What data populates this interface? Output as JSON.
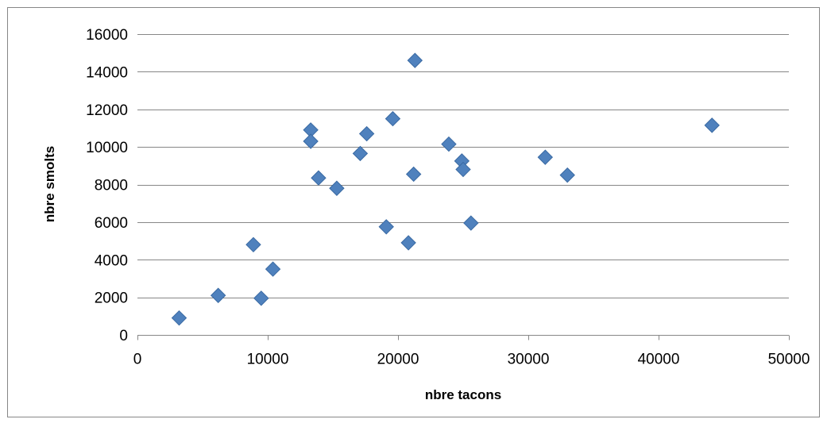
{
  "chart_data": {
    "type": "scatter",
    "title": "",
    "xlabel": "nbre tacons",
    "ylabel": "nbre smolts",
    "xlim": [
      0,
      50000
    ],
    "ylim": [
      0,
      16000
    ],
    "x_ticks": [
      0,
      10000,
      20000,
      30000,
      40000,
      50000
    ],
    "y_ticks": [
      0,
      2000,
      4000,
      6000,
      8000,
      10000,
      12000,
      14000,
      16000
    ],
    "grid": "horizontal",
    "legend": "none",
    "marker": "diamond",
    "marker_color": "#4f81bd",
    "marker_edge_color": "#3a6aa3",
    "gridline_color": "#878787",
    "points": [
      {
        "x": 3200,
        "y": 900
      },
      {
        "x": 6200,
        "y": 2100
      },
      {
        "x": 8900,
        "y": 4800
      },
      {
        "x": 9500,
        "y": 1950
      },
      {
        "x": 10400,
        "y": 3500
      },
      {
        "x": 13300,
        "y": 10900
      },
      {
        "x": 13300,
        "y": 10300
      },
      {
        "x": 13900,
        "y": 8350
      },
      {
        "x": 15300,
        "y": 7800
      },
      {
        "x": 17100,
        "y": 9650
      },
      {
        "x": 17600,
        "y": 10700
      },
      {
        "x": 19100,
        "y": 5750
      },
      {
        "x": 19600,
        "y": 11500
      },
      {
        "x": 20800,
        "y": 4900
      },
      {
        "x": 21200,
        "y": 8550
      },
      {
        "x": 21300,
        "y": 14600
      },
      {
        "x": 23900,
        "y": 10150
      },
      {
        "x": 24900,
        "y": 9250
      },
      {
        "x": 25000,
        "y": 8800
      },
      {
        "x": 25600,
        "y": 5950
      },
      {
        "x": 31300,
        "y": 9450
      },
      {
        "x": 33000,
        "y": 8500
      },
      {
        "x": 44100,
        "y": 11150
      }
    ]
  }
}
